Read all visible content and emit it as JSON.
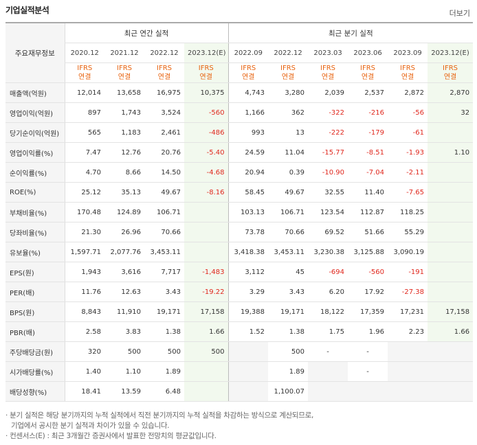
{
  "title": "기업실적분석",
  "more": "더보기",
  "header": {
    "row_label": "주요재무정보",
    "group_annual": "최근 연간 실적",
    "group_quarter": "최근 분기 실적",
    "periods": [
      "2020.12",
      "2021.12",
      "2022.12",
      "2023.12(E)",
      "2022.09",
      "2022.12",
      "2023.03",
      "2023.06",
      "2023.09",
      "2023.12(E)"
    ],
    "basis_top": "IFRS",
    "basis_bottom": "연결"
  },
  "rows": [
    {
      "label": "매출액(억원)",
      "values": [
        "12,014",
        "13,658",
        "16,975",
        "10,375",
        "4,743",
        "3,280",
        "2,039",
        "2,537",
        "2,872",
        "2,870"
      ]
    },
    {
      "label": "영업이익(억원)",
      "values": [
        "897",
        "1,743",
        "3,524",
        "-560",
        "1,166",
        "362",
        "-322",
        "-216",
        "-56",
        "32"
      ]
    },
    {
      "label": "당기순이익(억원)",
      "values": [
        "565",
        "1,183",
        "2,461",
        "-486",
        "993",
        "13",
        "-222",
        "-179",
        "-61",
        ""
      ]
    },
    {
      "label": "영업이익률(%)",
      "values": [
        "7.47",
        "12.76",
        "20.76",
        "-5.40",
        "24.59",
        "11.04",
        "-15.77",
        "-8.51",
        "-1.93",
        "1.10"
      ]
    },
    {
      "label": "순이익률(%)",
      "values": [
        "4.70",
        "8.66",
        "14.50",
        "-4.68",
        "20.94",
        "0.39",
        "-10.90",
        "-7.04",
        "-2.11",
        ""
      ]
    },
    {
      "label": "ROE(%)",
      "values": [
        "25.12",
        "35.13",
        "49.67",
        "-8.16",
        "58.45",
        "49.67",
        "32.55",
        "11.40",
        "-7.65",
        ""
      ]
    },
    {
      "label": "부채비율(%)",
      "values": [
        "170.48",
        "124.89",
        "106.71",
        "",
        "103.13",
        "106.71",
        "123.54",
        "112.87",
        "118.25",
        ""
      ]
    },
    {
      "label": "당좌비율(%)",
      "values": [
        "21.30",
        "26.96",
        "70.66",
        "",
        "73.78",
        "70.66",
        "69.52",
        "51.66",
        "55.29",
        ""
      ]
    },
    {
      "label": "유보율(%)",
      "values": [
        "1,597.71",
        "2,077.76",
        "3,453.11",
        "",
        "3,418.38",
        "3,453.11",
        "3,230.38",
        "3,125.88",
        "3,090.19",
        ""
      ]
    },
    {
      "label": "EPS(원)",
      "values": [
        "1,943",
        "3,616",
        "7,717",
        "-1,483",
        "3,112",
        "45",
        "-694",
        "-560",
        "-191",
        ""
      ]
    },
    {
      "label": "PER(배)",
      "values": [
        "11.76",
        "12.63",
        "3.43",
        "-19.22",
        "3.29",
        "3.43",
        "6.20",
        "17.92",
        "-27.38",
        ""
      ]
    },
    {
      "label": "BPS(원)",
      "values": [
        "8,843",
        "11,910",
        "19,171",
        "17,158",
        "19,388",
        "19,171",
        "18,122",
        "17,359",
        "17,231",
        "17,158"
      ]
    },
    {
      "label": "PBR(배)",
      "values": [
        "2.58",
        "3.83",
        "1.38",
        "1.66",
        "1.52",
        "1.38",
        "1.75",
        "1.96",
        "2.23",
        "1.66"
      ]
    },
    {
      "label": "주당배당금(원)",
      "values": [
        "320",
        "500",
        "500",
        "500",
        "",
        "500",
        "-",
        "-",
        "",
        ""
      ]
    },
    {
      "label": "시가배당률(%)",
      "values": [
        "1.40",
        "1.10",
        "1.89",
        "",
        "",
        "1.89",
        "",
        "-",
        "",
        ""
      ]
    },
    {
      "label": "배당성향(%)",
      "values": [
        "18.41",
        "13.59",
        "6.48",
        "",
        "",
        "1,100.07",
        "",
        "",
        "",
        ""
      ]
    }
  ],
  "notes": [
    "· 분기 실적은 해당 분기까지의 누적 실적에서 직전 분기까지의 누적 실적을 차감하는 방식으로 계산되므로,",
    "  기업에서 공시한 분기 실적과 차이가 있을 수 있습니다.",
    "· 컨센서스(E) : 최근 3개월간 증권사에서 발표한 전망치의 평균값입니다."
  ]
}
